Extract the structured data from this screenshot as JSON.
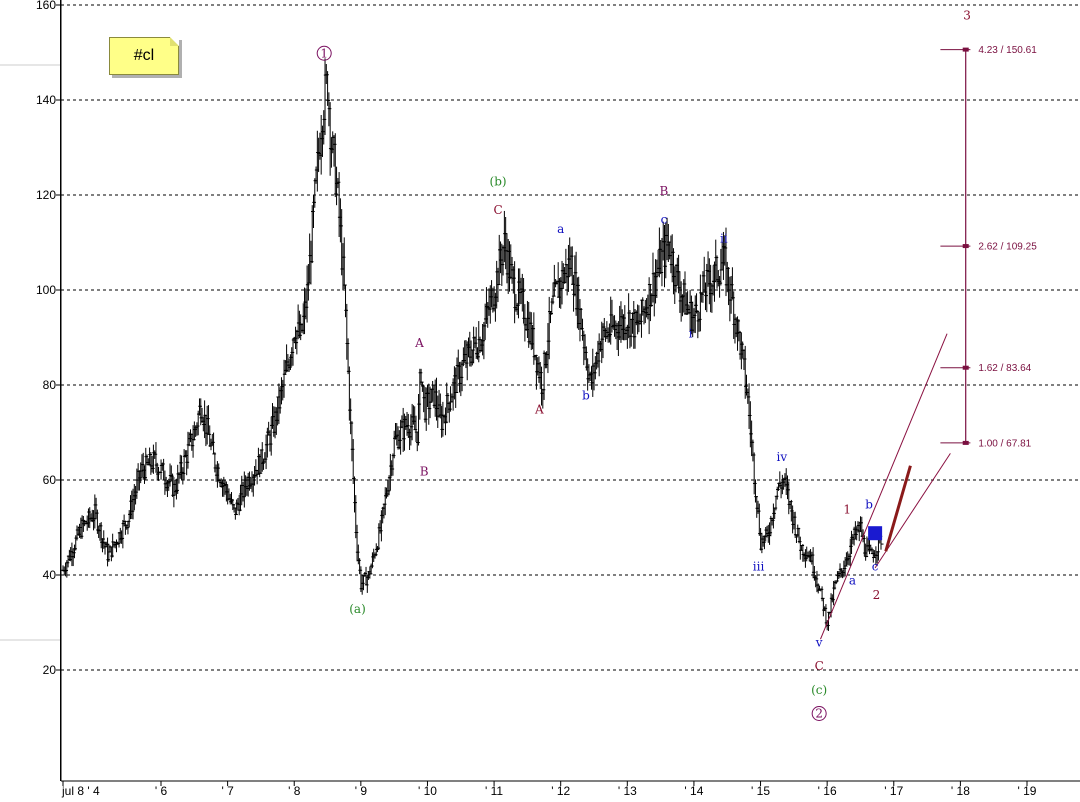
{
  "ticker_tag": "#cl",
  "colors": {
    "grid": "#000000",
    "price_bars": "#000000",
    "fib": "#7a1040",
    "channel": "#8a1040",
    "wave_purple": "#7a1060",
    "wave_green": "#2a8a2a",
    "wave_blue": "#1010c0",
    "wave_darkred": "#8a1030",
    "projection_arrow": "#8a1a1a",
    "current_marker": "#1a1ad0"
  },
  "chart_data": {
    "type": "bar",
    "subtype": "ohlc-price-bars",
    "title": "",
    "xlabel": "",
    "ylabel": "",
    "ylim": [
      0,
      160
    ],
    "xlim": [
      2004.52,
      2020.0
    ],
    "grid": "horizontal dashed",
    "y_ticks": [
      20,
      40,
      60,
      80,
      100,
      120,
      140,
      160
    ],
    "x_ticks": [
      {
        "label": "jul 8 ' 4",
        "x": 2004.52
      },
      {
        "label": "' 6",
        "x": 2006.0
      },
      {
        "label": "' 7",
        "x": 2007.0
      },
      {
        "label": "' 8",
        "x": 2008.0
      },
      {
        "label": "' 9",
        "x": 2009.0
      },
      {
        "label": "' 10",
        "x": 2010.0
      },
      {
        "label": "' 11",
        "x": 2011.0
      },
      {
        "label": "' 12",
        "x": 2012.0
      },
      {
        "label": "' 13",
        "x": 2013.0
      },
      {
        "label": "' 14",
        "x": 2014.0
      },
      {
        "label": "' 15",
        "x": 2015.0
      },
      {
        "label": "' 16",
        "x": 2016.0
      },
      {
        "label": "' 17",
        "x": 2017.0
      },
      {
        "label": "' 18",
        "x": 2018.0
      },
      {
        "label": "' 19",
        "x": 2019.0
      }
    ],
    "price_path": [
      [
        2004.52,
        41
      ],
      [
        2004.8,
        50
      ],
      [
        2005.0,
        53
      ],
      [
        2005.2,
        44
      ],
      [
        2005.5,
        52
      ],
      [
        2005.7,
        62
      ],
      [
        2005.9,
        64
      ],
      [
        2006.2,
        58
      ],
      [
        2006.5,
        70
      ],
      [
        2006.6,
        76
      ],
      [
        2006.8,
        64
      ],
      [
        2007.0,
        57
      ],
      [
        2007.1,
        53
      ],
      [
        2007.3,
        60
      ],
      [
        2007.5,
        64
      ],
      [
        2007.7,
        72
      ],
      [
        2007.9,
        84
      ],
      [
        2008.0,
        92
      ],
      [
        2008.1,
        90
      ],
      [
        2008.2,
        100
      ],
      [
        2008.3,
        118
      ],
      [
        2008.42,
        138
      ],
      [
        2008.5,
        144
      ],
      [
        2008.55,
        132
      ],
      [
        2008.65,
        120
      ],
      [
        2008.75,
        100
      ],
      [
        2008.85,
        70
      ],
      [
        2008.93,
        48
      ],
      [
        2009.0,
        38
      ],
      [
        2009.12,
        40
      ],
      [
        2009.3,
        50
      ],
      [
        2009.5,
        68
      ],
      [
        2009.7,
        72
      ],
      [
        2009.85,
        70
      ],
      [
        2009.9,
        84
      ],
      [
        2009.95,
        75
      ],
      [
        2010.1,
        78
      ],
      [
        2010.2,
        72
      ],
      [
        2010.4,
        80
      ],
      [
        2010.6,
        86
      ],
      [
        2010.8,
        90
      ],
      [
        2011.0,
        100
      ],
      [
        2011.15,
        110
      ],
      [
        2011.3,
        100
      ],
      [
        2011.45,
        96
      ],
      [
        2011.6,
        88
      ],
      [
        2011.72,
        80
      ],
      [
        2011.8,
        90
      ],
      [
        2011.9,
        98
      ],
      [
        2012.0,
        102
      ],
      [
        2012.15,
        106
      ],
      [
        2012.3,
        94
      ],
      [
        2012.4,
        84
      ],
      [
        2012.45,
        80
      ],
      [
        2012.6,
        90
      ],
      [
        2012.8,
        92
      ],
      [
        2013.0,
        94
      ],
      [
        2013.15,
        92
      ],
      [
        2013.3,
        98
      ],
      [
        2013.5,
        106
      ],
      [
        2013.62,
        110
      ],
      [
        2013.75,
        102
      ],
      [
        2013.9,
        96
      ],
      [
        2014.0,
        94
      ],
      [
        2014.15,
        100
      ],
      [
        2014.35,
        104
      ],
      [
        2014.45,
        106
      ],
      [
        2014.6,
        96
      ],
      [
        2014.7,
        88
      ],
      [
        2014.8,
        78
      ],
      [
        2014.9,
        62
      ],
      [
        2015.0,
        47
      ],
      [
        2015.1,
        48
      ],
      [
        2015.25,
        58
      ],
      [
        2015.35,
        60
      ],
      [
        2015.45,
        54
      ],
      [
        2015.6,
        46
      ],
      [
        2015.75,
        44
      ],
      [
        2015.9,
        36
      ],
      [
        2016.0,
        30
      ],
      [
        2016.12,
        38
      ],
      [
        2016.25,
        42
      ],
      [
        2016.4,
        48
      ],
      [
        2016.5,
        50
      ],
      [
        2016.55,
        46
      ],
      [
        2016.65,
        44
      ],
      [
        2016.75,
        46
      ],
      [
        2016.82,
        48
      ]
    ],
    "wave_labels": [
      {
        "text": "1",
        "circled": true,
        "x": 2008.45,
        "y": 149,
        "color": "wave_purple"
      },
      {
        "text": "(a)",
        "x": 2008.95,
        "y": 32,
        "color": "wave_green"
      },
      {
        "text": "A",
        "x": 2009.88,
        "y": 88,
        "color": "wave_purple"
      },
      {
        "text": "B",
        "x": 2009.95,
        "y": 61,
        "color": "wave_purple"
      },
      {
        "text": "(b)",
        "x": 2011.06,
        "y": 122,
        "color": "wave_green"
      },
      {
        "text": "C",
        "x": 2011.06,
        "y": 116,
        "color": "wave_darkred"
      },
      {
        "text": "A",
        "x": 2011.68,
        "y": 74,
        "color": "wave_darkred"
      },
      {
        "text": "a",
        "x": 2012.0,
        "y": 112,
        "color": "wave_blue"
      },
      {
        "text": "b",
        "x": 2012.38,
        "y": 77,
        "color": "wave_blue"
      },
      {
        "text": "B",
        "x": 2013.55,
        "y": 120,
        "color": "wave_purple"
      },
      {
        "text": "c",
        "x": 2013.55,
        "y": 114,
        "color": "wave_blue"
      },
      {
        "text": "ii",
        "x": 2014.45,
        "y": 110,
        "color": "wave_blue"
      },
      {
        "text": "i",
        "x": 2013.95,
        "y": 90,
        "color": "wave_blue"
      },
      {
        "text": "iii",
        "x": 2014.97,
        "y": 41,
        "color": "wave_blue"
      },
      {
        "text": "iv",
        "x": 2015.32,
        "y": 64,
        "color": "wave_blue"
      },
      {
        "text": "v",
        "x": 2015.88,
        "y": 25,
        "color": "wave_blue"
      },
      {
        "text": "C",
        "x": 2015.88,
        "y": 20,
        "color": "wave_darkred"
      },
      {
        "text": "(c)",
        "x": 2015.88,
        "y": 15,
        "color": "wave_green"
      },
      {
        "text": "2",
        "circled": true,
        "x": 2015.88,
        "y": 10,
        "color": "wave_purple"
      },
      {
        "text": "1",
        "x": 2016.3,
        "y": 53,
        "color": "wave_darkred"
      },
      {
        "text": "a",
        "x": 2016.38,
        "y": 38,
        "color": "wave_blue"
      },
      {
        "text": "b",
        "x": 2016.63,
        "y": 54,
        "color": "wave_blue"
      },
      {
        "text": "c",
        "x": 2016.72,
        "y": 41,
        "color": "wave_blue"
      },
      {
        "text": "2",
        "x": 2016.74,
        "y": 35,
        "color": "wave_darkred"
      },
      {
        "text": "3",
        "x": 2018.1,
        "y": 157,
        "color": "wave_darkred"
      }
    ],
    "fib_levels": [
      {
        "label": "4.23 / 150.61",
        "value": 150.61
      },
      {
        "label": "2.62 / 109.25",
        "value": 109.25
      },
      {
        "label": "1.62 / 83.64",
        "value": 83.64
      },
      {
        "label": "1.00 / 67.81",
        "value": 67.81
      }
    ],
    "fib_range": {
      "x_start": 2017.7,
      "x_end": 2018.15,
      "anchor_x": 2018.08
    },
    "channel_lines": [
      {
        "from": [
          2015.9,
          26.5
        ],
        "to": [
          2017.8,
          90.8
        ]
      },
      {
        "from": [
          2016.72,
          41.5
        ],
        "to": [
          2017.85,
          65.6
        ]
      }
    ],
    "projection_arrow": {
      "from": [
        2016.88,
        45
      ],
      "to": [
        2017.25,
        63
      ]
    },
    "current_marker": {
      "x": 2016.72,
      "y": 48.8
    }
  }
}
